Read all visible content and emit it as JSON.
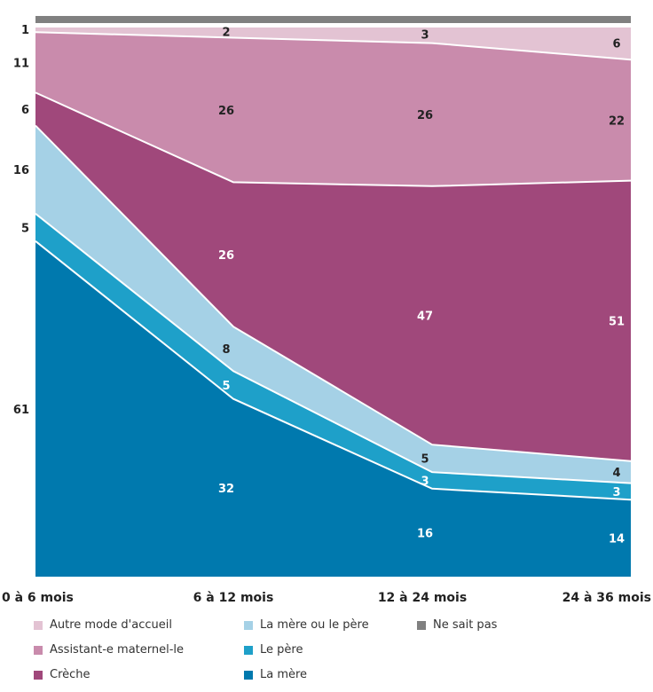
{
  "chart_data": {
    "type": "area",
    "stacked": true,
    "normalized_percent": true,
    "categories": [
      "0 à 6 mois",
      "6 à 12 mois",
      "12 à 24 mois",
      "24 à 36 mois"
    ],
    "series": [
      {
        "name": "La mère",
        "color": "#0079AE",
        "text_color": "#ffffff",
        "values": [
          61,
          32,
          16,
          14
        ]
      },
      {
        "name": "Le père",
        "color": "#1EA0C9",
        "text_color": "#ffffff",
        "values": [
          5,
          5,
          3,
          3
        ]
      },
      {
        "name": "La mère ou le père",
        "color": "#A5D1E6",
        "text_color": "#222222",
        "values": [
          16,
          8,
          5,
          4
        ]
      },
      {
        "name": "Crèche",
        "color": "#A0487B",
        "text_color": "#ffffff",
        "values": [
          6,
          26,
          47,
          51
        ]
      },
      {
        "name": "Assistant-e maternel-le",
        "color": "#C98BAC",
        "text_color": "#222222",
        "values": [
          11,
          26,
          26,
          22
        ]
      },
      {
        "name": "Autre mode d'accueil",
        "color": "#E3C3D3",
        "text_color": "#222222",
        "values": [
          1,
          2,
          3,
          6
        ]
      },
      {
        "name": "Ne sait pas",
        "color": "#808080",
        "text_color": "#222222",
        "values": [
          0,
          0,
          0,
          0
        ]
      }
    ],
    "first_column_labels_outside": true,
    "legend_position": "bottom",
    "grid": false
  },
  "legend": {
    "items": [
      {
        "label": "Autre mode d'accueil",
        "color": "#E3C3D3"
      },
      {
        "label": "La mère ou le père",
        "color": "#A5D1E6"
      },
      {
        "label": "Ne sait pas",
        "color": "#808080"
      },
      {
        "label": "Assistant-e maternel-le",
        "color": "#C98BAC"
      },
      {
        "label": "Le père",
        "color": "#1EA0C9"
      },
      {
        "label": "Crèche",
        "color": "#A0487B"
      },
      {
        "label": "La mère",
        "color": "#0079AE"
      }
    ]
  }
}
